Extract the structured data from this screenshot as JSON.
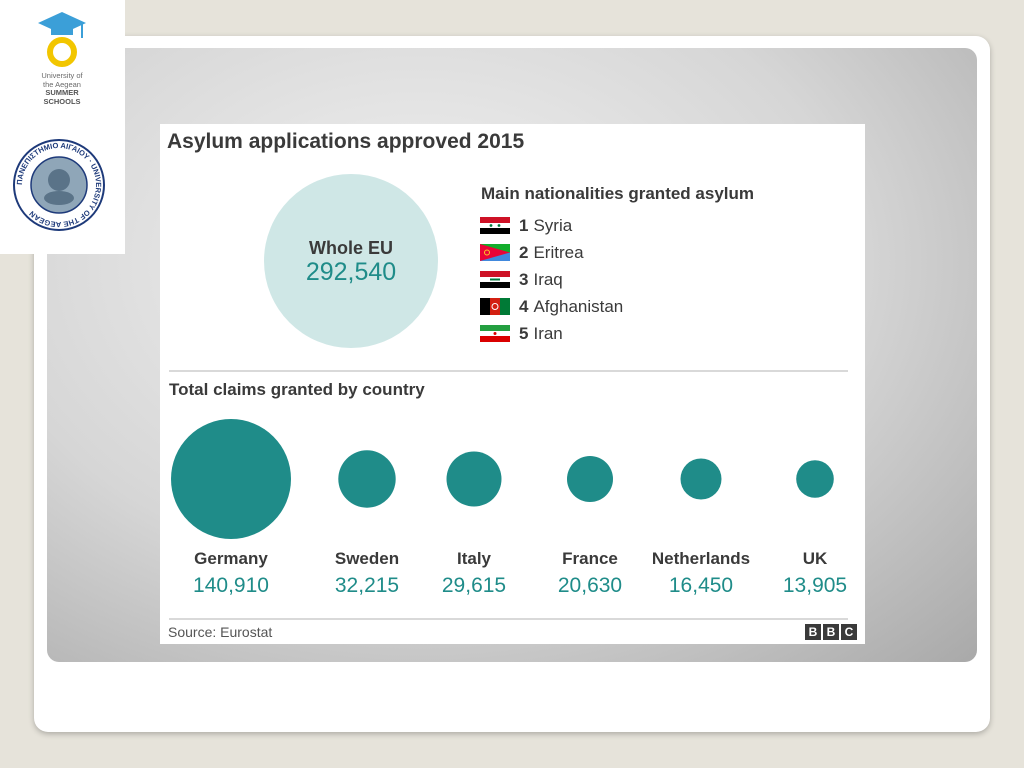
{
  "logo": {
    "university_lines": [
      "University of",
      "the Aegean"
    ],
    "program_lines": [
      "SUMMER",
      "SCHOOLS"
    ],
    "seal_text": "ΠΑΝΕΠΙΣΤΗΜΙΟ ΑΙΓΑΙΟΥ · UNIVERSITY OF THE AEGEAN"
  },
  "colors": {
    "teal": "#1f8c89",
    "light_teal": "#cfe7e6",
    "text": "#3a3a3a"
  },
  "chart_data": {
    "type": "bubble",
    "title": "Asylum applications approved 2015",
    "total": {
      "label": "Whole EU",
      "value": 292540,
      "display": "292,540"
    },
    "nationalities": {
      "heading": "Main nationalities granted asylum",
      "items": [
        {
          "rank": "1",
          "name": "Syria",
          "flag": "syria-flag-icon"
        },
        {
          "rank": "2",
          "name": "Eritrea",
          "flag": "eritrea-flag-icon"
        },
        {
          "rank": "3",
          "name": "Iraq",
          "flag": "iraq-flag-icon"
        },
        {
          "rank": "4",
          "name": "Afghanistan",
          "flag": "afghanistan-flag-icon"
        },
        {
          "rank": "5",
          "name": "Iran",
          "flag": "iran-flag-icon"
        }
      ]
    },
    "by_country": {
      "heading": "Total claims granted by country",
      "categories": [
        "Germany",
        "Sweden",
        "Italy",
        "France",
        "Netherlands",
        "UK"
      ],
      "values": [
        140910,
        32215,
        29615,
        20630,
        16450,
        13905
      ],
      "display": [
        "140,910",
        "32,215",
        "29,615",
        "20,630",
        "16,450",
        "13,905"
      ]
    },
    "source": "Source: Eurostat",
    "brand": [
      "B",
      "B",
      "C"
    ]
  }
}
